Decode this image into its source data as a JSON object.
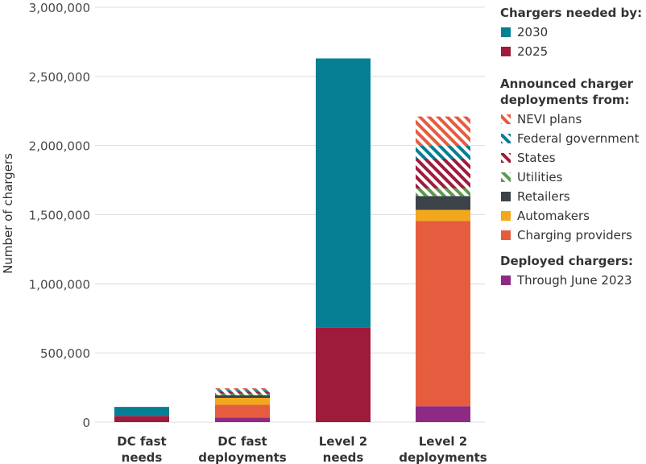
{
  "chart_data": {
    "type": "bar",
    "stacked": true,
    "ylabel": "Number of chargers",
    "ylim": [
      0,
      3000000
    ],
    "yticks": [
      0,
      500000,
      1000000,
      1500000,
      2000000,
      2500000,
      3000000
    ],
    "ytick_labels": [
      "0",
      "500,000",
      "1,000,000",
      "1,500,000",
      "2,000,000",
      "2,500,000",
      "3,000,000"
    ],
    "categories": [
      [
        "DC fast",
        "needs"
      ],
      [
        "DC fast",
        "deployments"
      ],
      [
        "Level 2",
        "needs"
      ],
      [
        "Level 2",
        "deployments"
      ]
    ],
    "series": [
      {
        "name": "Through June 2023",
        "color": "#8e2a83",
        "pattern": false,
        "values": [
          0,
          33000,
          0,
          115000
        ]
      },
      {
        "name": "Charging providers",
        "color": "#e55c3f",
        "pattern": false,
        "values": [
          0,
          92000,
          0,
          1340000
        ]
      },
      {
        "name": "Automakers",
        "color": "#f2a81d",
        "pattern": false,
        "values": [
          0,
          50000,
          0,
          80000
        ]
      },
      {
        "name": "Retailers",
        "color": "#3b4248",
        "pattern": false,
        "values": [
          0,
          20000,
          0,
          100000
        ]
      },
      {
        "name": "Utilities",
        "color": "#5b9a4c",
        "pattern": true,
        "values": [
          0,
          10000,
          0,
          55000
        ]
      },
      {
        "name": "States",
        "color": "#9e1b3c",
        "pattern": true,
        "values": [
          0,
          15000,
          0,
          215000
        ]
      },
      {
        "name": "Federal government",
        "color": "#047f94",
        "pattern": true,
        "values": [
          0,
          12000,
          0,
          95000
        ]
      },
      {
        "name": "NEVI plans",
        "color": "#e55c3f",
        "pattern": true,
        "values": [
          0,
          13000,
          0,
          210000
        ]
      },
      {
        "name": "2025",
        "color": "#9e1b3c",
        "pattern": false,
        "values": [
          45000,
          0,
          682000,
          0
        ]
      },
      {
        "name": "2030",
        "color": "#047f94",
        "pattern": false,
        "values": [
          65000,
          0,
          1948000,
          0
        ]
      }
    ],
    "legend": {
      "placement": "right",
      "groups": [
        {
          "heading": "Chargers needed by:",
          "items": [
            "2030",
            "2025"
          ]
        },
        {
          "heading": [
            "Announced charger",
            "deployments from:"
          ],
          "items": [
            "NEVI plans",
            "Federal government",
            "States",
            "Utilities",
            "Retailers",
            "Automakers",
            "Charging providers"
          ]
        },
        {
          "heading": "Deployed chargers:",
          "items": [
            "Through June 2023"
          ]
        }
      ]
    },
    "grid": true
  }
}
